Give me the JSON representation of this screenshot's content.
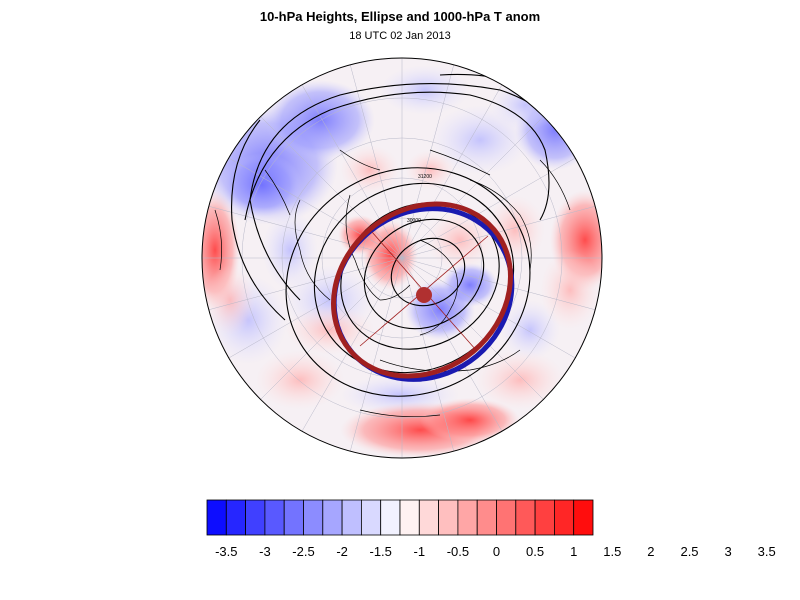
{
  "title": "10-hPa Heights, Ellipse and 1000-hPa T anom",
  "subtitle": "18 UTC 02 Jan 2013",
  "map": {
    "projection": "polar stereographic (north pole)",
    "field": "1000-hPa temperature anomaly",
    "contours": "10-hPa geopotential heights",
    "contour_labels": [
      "31200",
      "30000"
    ],
    "vortex_ellipse_colors": [
      "#1a1ab0",
      "#a02020"
    ],
    "vortex_center_color": "#b03030"
  },
  "colorbar": {
    "labels": [
      "-3.5",
      "-3",
      "-2.5",
      "-2",
      "-1.5",
      "-1",
      "-0.5",
      "0",
      "0.5",
      "1",
      "1.5",
      "2",
      "2.5",
      "3",
      "3.5"
    ],
    "colors": [
      "#0d0dff",
      "#2626ff",
      "#4040ff",
      "#5959ff",
      "#7373ff",
      "#8c8cff",
      "#a6a6ff",
      "#bfbfff",
      "#d9d9ff",
      "#f2f2ff",
      "#fff2f2",
      "#ffd9d9",
      "#ffbfbf",
      "#ffa6a6",
      "#ff8c8c",
      "#ff7373",
      "#ff5959",
      "#ff4040",
      "#ff2626",
      "#ff0d0d"
    ]
  }
}
